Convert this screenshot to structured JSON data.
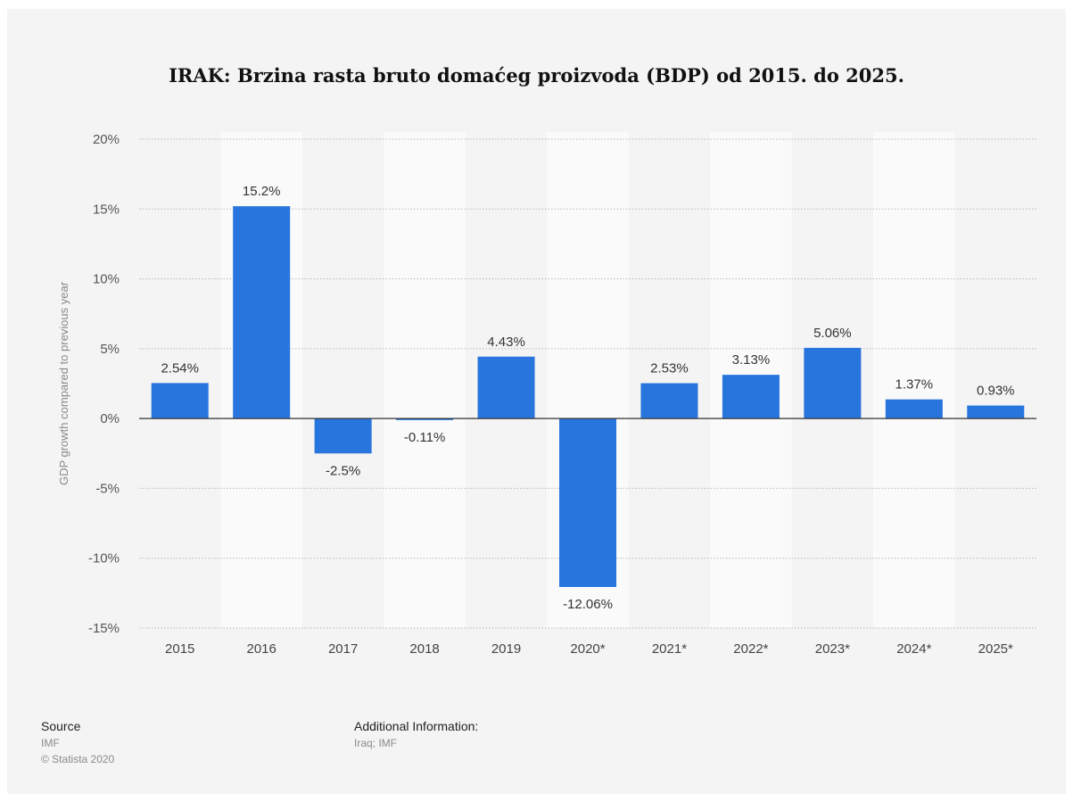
{
  "chart_data": {
    "type": "bar",
    "title": "IRAK: Brzina rasta bruto domaćeg proizvoda (BDP) od 2015. do 2025.",
    "xlabel": "",
    "ylabel": "GDP growth compared to previous year",
    "ylim": [
      -15,
      20
    ],
    "yticks": [
      20,
      15,
      10,
      5,
      0,
      -5,
      -10,
      -15
    ],
    "ytick_labels": [
      "20%",
      "15%",
      "10%",
      "5%",
      "0%",
      "-5%",
      "-10%",
      "-15%"
    ],
    "categories": [
      "2015",
      "2016",
      "2017",
      "2018",
      "2019",
      "2020*",
      "2021*",
      "2022*",
      "2023*",
      "2024*",
      "2025*"
    ],
    "values": [
      2.54,
      15.2,
      -2.5,
      -0.11,
      4.43,
      -12.06,
      2.53,
      3.13,
      5.06,
      1.37,
      0.93
    ],
    "value_labels": [
      "2.54%",
      "15.2%",
      "-2.5%",
      "-0.11%",
      "4.43%",
      "-12.06%",
      "2.53%",
      "3.13%",
      "5.06%",
      "1.37%",
      "0.93%"
    ],
    "grid": true,
    "legend": "none",
    "bar_color": "#2876dd",
    "background_color": "#f4f4f4",
    "alt_band_color": "#fafafa"
  },
  "footer": {
    "source_label": "Source",
    "source_lines": [
      "IMF",
      "© Statista 2020"
    ],
    "additional_label": "Additional Information:",
    "additional_lines": [
      "Iraq; IMF"
    ]
  }
}
